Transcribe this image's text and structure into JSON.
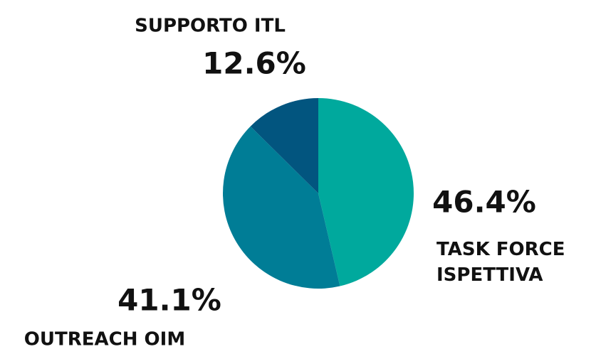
{
  "chart_data": {
    "type": "pie",
    "categories": [
      "TASK FORCE ISPETTIVA",
      "OUTREACH OIM",
      "SUPPORTO ITL"
    ],
    "values": [
      46.4,
      41.1,
      12.6
    ],
    "value_labels": [
      "46.4%",
      "41.1%",
      "12.6%"
    ],
    "colors": [
      "#00a99d",
      "#007d96",
      "#02557f"
    ]
  }
}
